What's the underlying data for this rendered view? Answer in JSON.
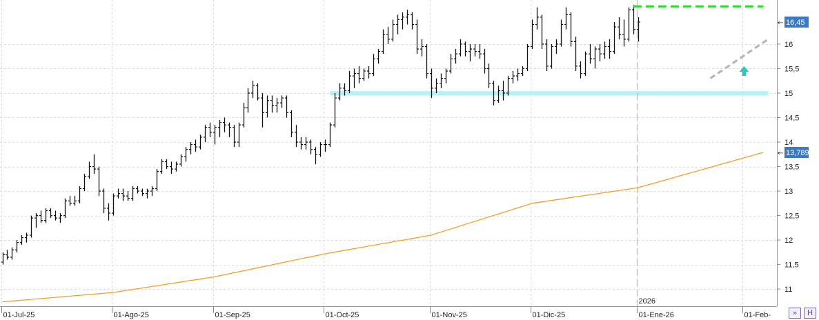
{
  "chart_data": {
    "type": "ohlc",
    "ylim": [
      10.65,
      16.9
    ],
    "y_ticks": [
      "11",
      "11,5",
      "12",
      "12,5",
      "13",
      "13,5",
      "14",
      "14,5",
      "15",
      "15,5",
      "16"
    ],
    "y_tick_values": [
      11,
      11.5,
      12,
      12.5,
      13,
      13.5,
      14,
      14.5,
      15,
      15.5,
      16
    ],
    "x_tick_labels": [
      "01-Jul-25",
      "01-Ago-25",
      "01-Sep-25",
      "01-Oct-25",
      "01-Nov-25",
      "01-Dic-25",
      "01-Ene-26",
      "01-Feb-"
    ],
    "x_tick_bar_index": [
      0,
      23,
      44,
      67,
      89,
      110,
      132,
      154
    ],
    "year_marker": {
      "label": "2026",
      "bar_index": 132
    },
    "grid": true,
    "colors": {
      "bars": "#111111",
      "moving_average": "#f0a020",
      "resistance": "#22dd22",
      "support_zone": "#aeeef2",
      "trendline": "#b4b4b4",
      "arrow": "#2ec8b4",
      "price_badge": "#3a78c8"
    },
    "last_price_label": "16,45",
    "last_price_value": 16.45,
    "moving_average_label": "13,789",
    "moving_average_value": 13.789,
    "moving_average": [
      [
        0,
        10.74
      ],
      [
        23,
        10.93
      ],
      [
        44,
        11.25
      ],
      [
        67,
        11.72
      ],
      [
        89,
        12.1
      ],
      [
        110,
        12.75
      ],
      [
        132,
        13.07
      ],
      [
        158,
        13.79
      ]
    ],
    "resistance_line": {
      "value": 16.77,
      "from_bar": 131,
      "to_bar": 158
    },
    "support_zone": {
      "low": 14.95,
      "high": 15.04,
      "from_bar": 68,
      "to_bar": 159
    },
    "trendline": [
      [
        147,
        15.3
      ],
      [
        159,
        16.1
      ]
    ],
    "arrow": {
      "bar": 154,
      "value": 15.45
    },
    "ohlc": [
      [
        11.55,
        11.75,
        11.5,
        11.7
      ],
      [
        11.7,
        11.8,
        11.6,
        11.65
      ],
      [
        11.65,
        11.85,
        11.6,
        11.8
      ],
      [
        11.8,
        12.0,
        11.75,
        11.95
      ],
      [
        11.95,
        12.1,
        11.9,
        12.05
      ],
      [
        12.05,
        12.15,
        11.95,
        12.1
      ],
      [
        12.1,
        12.5,
        12.05,
        12.45
      ],
      [
        12.45,
        12.55,
        12.25,
        12.5
      ],
      [
        12.5,
        12.6,
        12.35,
        12.4
      ],
      [
        12.4,
        12.65,
        12.35,
        12.6
      ],
      [
        12.6,
        12.65,
        12.45,
        12.5
      ],
      [
        12.5,
        12.6,
        12.4,
        12.45
      ],
      [
        12.45,
        12.55,
        12.35,
        12.5
      ],
      [
        12.5,
        12.85,
        12.45,
        12.8
      ],
      [
        12.8,
        12.9,
        12.7,
        12.75
      ],
      [
        12.75,
        12.9,
        12.7,
        12.8
      ],
      [
        12.8,
        13.1,
        12.75,
        13.05
      ],
      [
        13.05,
        13.35,
        13.0,
        13.3
      ],
      [
        13.3,
        13.6,
        13.25,
        13.5
      ],
      [
        13.5,
        13.75,
        13.35,
        13.45
      ],
      [
        13.45,
        13.5,
        12.9,
        13.0
      ],
      [
        13.0,
        13.05,
        12.55,
        12.65
      ],
      [
        12.65,
        12.75,
        12.4,
        12.55
      ],
      [
        12.55,
        12.95,
        12.5,
        12.9
      ],
      [
        12.9,
        13.05,
        12.85,
        12.95
      ],
      [
        12.95,
        13.05,
        12.8,
        12.9
      ],
      [
        12.9,
        13.0,
        12.8,
        12.85
      ],
      [
        12.85,
        13.1,
        12.8,
        13.05
      ],
      [
        13.05,
        13.1,
        12.95,
        13.0
      ],
      [
        13.0,
        13.05,
        12.9,
        12.95
      ],
      [
        12.95,
        13.05,
        12.85,
        13.0
      ],
      [
        13.0,
        13.1,
        12.9,
        13.05
      ],
      [
        13.05,
        13.45,
        13.0,
        13.4
      ],
      [
        13.4,
        13.65,
        13.35,
        13.6
      ],
      [
        13.6,
        13.65,
        13.45,
        13.5
      ],
      [
        13.5,
        13.6,
        13.35,
        13.45
      ],
      [
        13.45,
        13.6,
        13.4,
        13.55
      ],
      [
        13.55,
        13.75,
        13.5,
        13.7
      ],
      [
        13.7,
        13.9,
        13.6,
        13.85
      ],
      [
        13.85,
        14.0,
        13.75,
        13.95
      ],
      [
        13.95,
        14.05,
        13.8,
        13.9
      ],
      [
        13.9,
        14.15,
        13.85,
        14.1
      ],
      [
        14.1,
        14.35,
        14.0,
        14.3
      ],
      [
        14.3,
        14.4,
        14.1,
        14.2
      ],
      [
        14.2,
        14.35,
        13.95,
        14.3
      ],
      [
        14.3,
        14.45,
        14.1,
        14.4
      ],
      [
        14.4,
        14.5,
        14.2,
        14.35
      ],
      [
        14.35,
        14.4,
        14.1,
        14.3
      ],
      [
        14.3,
        14.35,
        13.9,
        14.0
      ],
      [
        14.0,
        14.4,
        13.9,
        14.35
      ],
      [
        14.35,
        14.8,
        14.3,
        14.7
      ],
      [
        14.7,
        15.1,
        14.6,
        15.0
      ],
      [
        15.0,
        15.25,
        14.9,
        15.15
      ],
      [
        15.15,
        15.2,
        14.85,
        14.9
      ],
      [
        14.9,
        15.0,
        14.3,
        14.6
      ],
      [
        14.6,
        14.95,
        14.5,
        14.85
      ],
      [
        14.85,
        14.95,
        14.6,
        14.75
      ],
      [
        14.75,
        14.9,
        14.6,
        14.8
      ],
      [
        14.8,
        14.95,
        14.7,
        14.9
      ],
      [
        14.9,
        14.95,
        14.5,
        14.6
      ],
      [
        14.6,
        14.65,
        14.1,
        14.2
      ],
      [
        14.2,
        14.35,
        13.9,
        14.0
      ],
      [
        14.0,
        14.1,
        13.85,
        13.95
      ],
      [
        13.95,
        14.1,
        13.85,
        14.0
      ],
      [
        14.0,
        14.05,
        13.75,
        13.85
      ],
      [
        13.85,
        13.9,
        13.55,
        13.75
      ],
      [
        13.75,
        14.0,
        13.7,
        13.95
      ],
      [
        13.95,
        14.05,
        13.8,
        13.95
      ],
      [
        13.95,
        14.4,
        13.9,
        14.35
      ],
      [
        14.35,
        15.0,
        14.3,
        14.9
      ],
      [
        14.9,
        15.2,
        14.85,
        15.1
      ],
      [
        15.1,
        15.2,
        14.95,
        15.05
      ],
      [
        15.05,
        15.45,
        15.0,
        15.35
      ],
      [
        15.35,
        15.5,
        15.1,
        15.4
      ],
      [
        15.4,
        15.55,
        15.2,
        15.3
      ],
      [
        15.3,
        15.5,
        15.25,
        15.45
      ],
      [
        15.45,
        15.55,
        15.3,
        15.4
      ],
      [
        15.4,
        15.8,
        15.35,
        15.7
      ],
      [
        15.7,
        15.9,
        15.6,
        15.85
      ],
      [
        15.85,
        16.3,
        15.8,
        16.2
      ],
      [
        16.2,
        16.35,
        16.0,
        16.1
      ],
      [
        16.1,
        16.5,
        16.05,
        16.4
      ],
      [
        16.4,
        16.6,
        16.2,
        16.5
      ],
      [
        16.5,
        16.65,
        16.3,
        16.55
      ],
      [
        16.55,
        16.7,
        16.4,
        16.6
      ],
      [
        16.6,
        16.65,
        16.3,
        16.4
      ],
      [
        16.4,
        16.5,
        15.8,
        15.9
      ],
      [
        15.9,
        16.1,
        15.75,
        15.95
      ],
      [
        15.95,
        16.0,
        15.3,
        15.4
      ],
      [
        15.4,
        15.5,
        14.9,
        15.1
      ],
      [
        15.1,
        15.3,
        15.0,
        15.2
      ],
      [
        15.2,
        15.4,
        15.1,
        15.3
      ],
      [
        15.3,
        15.5,
        15.2,
        15.45
      ],
      [
        15.45,
        15.8,
        15.4,
        15.7
      ],
      [
        15.7,
        15.9,
        15.6,
        15.8
      ],
      [
        15.8,
        16.1,
        15.75,
        16.0
      ],
      [
        16.0,
        16.05,
        15.75,
        15.85
      ],
      [
        15.85,
        16.0,
        15.65,
        15.9
      ],
      [
        15.9,
        16.0,
        15.75,
        15.85
      ],
      [
        15.85,
        16.0,
        15.7,
        15.8
      ],
      [
        15.8,
        15.9,
        15.4,
        15.5
      ],
      [
        15.5,
        15.6,
        15.1,
        15.2
      ],
      [
        15.2,
        15.25,
        14.75,
        14.85
      ],
      [
        14.85,
        15.15,
        14.8,
        15.05
      ],
      [
        15.05,
        15.25,
        14.85,
        15.0
      ],
      [
        15.0,
        15.35,
        14.95,
        15.3
      ],
      [
        15.3,
        15.45,
        15.2,
        15.35
      ],
      [
        15.35,
        15.5,
        15.25,
        15.4
      ],
      [
        15.4,
        15.55,
        15.35,
        15.5
      ],
      [
        15.5,
        16.0,
        15.45,
        15.95
      ],
      [
        15.95,
        16.5,
        15.9,
        16.4
      ],
      [
        16.4,
        16.75,
        16.3,
        16.55
      ],
      [
        16.55,
        16.6,
        15.9,
        16.0
      ],
      [
        16.0,
        16.1,
        15.45,
        15.55
      ],
      [
        15.55,
        16.0,
        15.5,
        15.95
      ],
      [
        15.95,
        16.1,
        15.8,
        16.0
      ],
      [
        16.0,
        16.5,
        15.95,
        16.4
      ],
      [
        16.4,
        16.75,
        16.3,
        16.6
      ],
      [
        16.6,
        16.65,
        15.95,
        16.05
      ],
      [
        16.05,
        16.15,
        15.45,
        15.55
      ],
      [
        15.55,
        15.65,
        15.3,
        15.4
      ],
      [
        15.4,
        15.85,
        15.35,
        15.8
      ],
      [
        15.8,
        16.0,
        15.6,
        15.7
      ],
      [
        15.7,
        15.95,
        15.5,
        15.9
      ],
      [
        15.9,
        16.0,
        15.65,
        15.8
      ],
      [
        15.8,
        16.05,
        15.7,
        15.95
      ],
      [
        15.95,
        16.1,
        15.7,
        15.85
      ],
      [
        15.85,
        16.45,
        15.8,
        16.35
      ],
      [
        16.35,
        16.55,
        16.1,
        16.2
      ],
      [
        16.2,
        16.5,
        15.95,
        16.1
      ],
      [
        16.1,
        16.75,
        16.05,
        16.7
      ],
      [
        16.7,
        16.8,
        16.2,
        16.3
      ],
      [
        16.3,
        16.55,
        16.05,
        16.45
      ]
    ]
  }
}
